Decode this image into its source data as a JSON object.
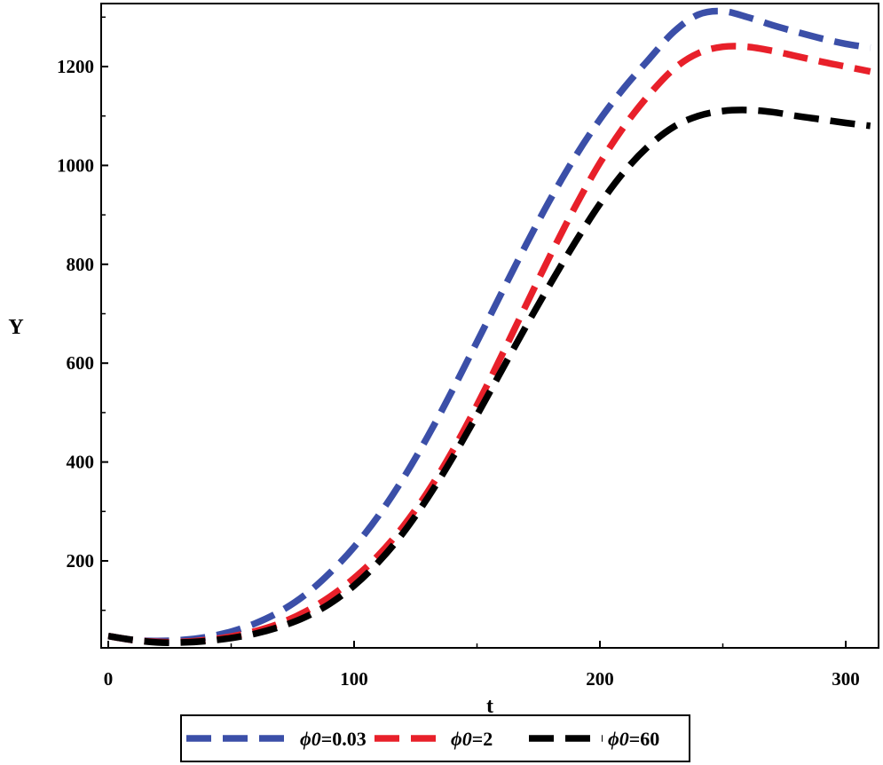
{
  "chart_data": {
    "type": "line",
    "xlabel": "t",
    "ylabel": "Y",
    "xlim": [
      0,
      310
    ],
    "ylim": [
      30,
      1320
    ],
    "x_ticks": [
      0,
      100,
      200,
      300
    ],
    "y_ticks": [
      200,
      400,
      600,
      800,
      1000,
      1200
    ],
    "legend_position": "bottom",
    "series": [
      {
        "name_symbol": "ϕ0",
        "name_value": "=0.03",
        "color": "#3b4fa8",
        "x": [
          0,
          10,
          20,
          30,
          40,
          50,
          60,
          70,
          80,
          90,
          100,
          110,
          120,
          130,
          140,
          150,
          160,
          170,
          180,
          190,
          200,
          210,
          220,
          230,
          240,
          250,
          260,
          270,
          280,
          290,
          300,
          310
        ],
        "y": [
          48,
          40,
          38,
          40,
          46,
          57,
          74,
          98,
          131,
          175,
          228,
          292,
          367,
          452,
          545,
          643,
          742,
          840,
          933,
          1018,
          1093,
          1158,
          1215,
          1270,
          1305,
          1312,
          1300,
          1284,
          1270,
          1257,
          1246,
          1238
        ]
      },
      {
        "name_symbol": "ϕ0",
        "name_value": "=2",
        "color": "#e8202a",
        "x": [
          0,
          10,
          20,
          30,
          40,
          50,
          60,
          70,
          80,
          90,
          100,
          110,
          120,
          130,
          140,
          150,
          160,
          170,
          180,
          190,
          200,
          210,
          220,
          230,
          240,
          250,
          260,
          270,
          280,
          290,
          300,
          310
        ],
        "y": [
          48,
          40,
          36,
          36,
          40,
          47,
          58,
          74,
          97,
          127,
          165,
          212,
          270,
          340,
          422,
          515,
          615,
          718,
          820,
          917,
          1005,
          1080,
          1143,
          1195,
          1227,
          1240,
          1240,
          1232,
          1221,
          1210,
          1200,
          1190
        ]
      },
      {
        "name_symbol": "ϕ0",
        "name_value": "=60",
        "color": "#000000",
        "x": [
          0,
          10,
          20,
          30,
          40,
          50,
          60,
          70,
          80,
          90,
          100,
          110,
          120,
          130,
          140,
          150,
          160,
          170,
          180,
          190,
          200,
          210,
          220,
          230,
          240,
          250,
          260,
          270,
          280,
          290,
          300,
          310
        ],
        "y": [
          48,
          40,
          35,
          35,
          38,
          44,
          53,
          67,
          86,
          113,
          150,
          198,
          257,
          328,
          408,
          495,
          585,
          675,
          762,
          845,
          922,
          988,
          1040,
          1078,
          1100,
          1110,
          1112,
          1108,
          1100,
          1093,
          1086,
          1080
        ]
      }
    ]
  }
}
